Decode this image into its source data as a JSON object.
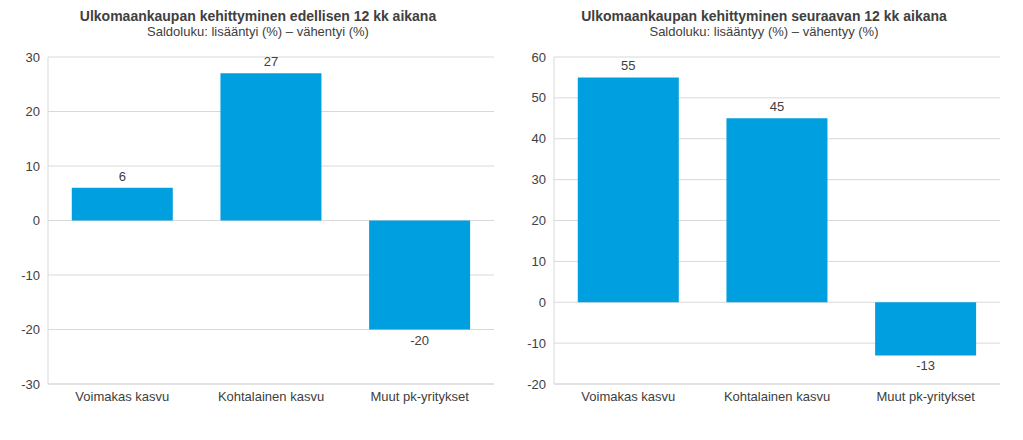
{
  "chart_data": [
    {
      "type": "bar",
      "title": "Ulkomaankaupan kehittyminen edellisen 12 kk aikana",
      "subtitle": "Saldoluku: lisääntyi (%) – vähentyi (%)",
      "categories": [
        "Voimakas kasvu",
        "Kohtalainen kasvu",
        "Muut pk-yritykset"
      ],
      "values": [
        6,
        27,
        -20
      ],
      "color": "#009fdf",
      "ylim": [
        -30,
        30
      ],
      "yticks": [
        -30,
        -20,
        -10,
        0,
        10,
        20,
        30
      ],
      "grid": true,
      "data_labels": true
    },
    {
      "type": "bar",
      "title": "Ulkomaankaupan kehittyminen seuraavan 12 kk aikana",
      "subtitle": "Saldoluku: lisääntyy (%) – vähentyy (%)",
      "categories": [
        "Voimakas kasvu",
        "Kohtalainen kasvu",
        "Muut pk-yritykset"
      ],
      "values": [
        55,
        45,
        -13
      ],
      "color": "#009fdf",
      "ylim": [
        -20,
        60
      ],
      "yticks": [
        -20,
        -10,
        0,
        10,
        20,
        30,
        40,
        50,
        60
      ],
      "grid": true,
      "data_labels": true
    }
  ]
}
